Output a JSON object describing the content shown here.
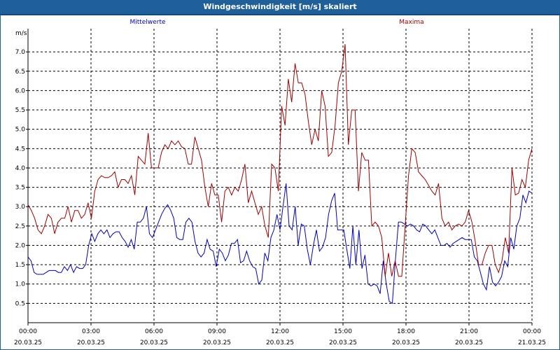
{
  "window": {
    "title": "Windgeschwindigkeit [m/s] skaliert"
  },
  "colors": {
    "title_bg": "#1f5f9a",
    "mean": "#0000c0",
    "max": "#a00000",
    "grid": "#000000"
  },
  "chart_data": {
    "type": "line",
    "title": "Windgeschwindigkeit [m/s] skaliert",
    "ylabel": "m/s",
    "xlabel": "",
    "ylim": [
      0,
      7.6
    ],
    "xlim": [
      0,
      24
    ],
    "grid": true,
    "y_ticks": [
      "0.5",
      "1.0",
      "1.5",
      "2.0",
      "2.5",
      "3.0",
      "3.5",
      "4.0",
      "4.5",
      "5.0",
      "5.5",
      "6.0",
      "6.5",
      "7.0"
    ],
    "x_ticks": [
      {
        "time": "00:00",
        "date": "20.03.25"
      },
      {
        "time": "03:00",
        "date": "20.03.25"
      },
      {
        "time": "06:00",
        "date": "20.03.25"
      },
      {
        "time": "09:00",
        "date": "20.03.25"
      },
      {
        "time": "12:00",
        "date": "20.03.25"
      },
      {
        "time": "15:00",
        "date": "20.03.25"
      },
      {
        "time": "18:00",
        "date": "20.03.25"
      },
      {
        "time": "21:00",
        "date": "20.03.25"
      },
      {
        "time": "00:00",
        "date": "21.03.25"
      }
    ],
    "series": [
      {
        "name": "Mittelwerte",
        "color": "#0000c0",
        "values": [
          1.7,
          1.6,
          1.3,
          1.25,
          1.25,
          1.25,
          1.3,
          1.35,
          1.35,
          1.35,
          1.3,
          1.3,
          1.45,
          1.35,
          1.5,
          1.3,
          1.45,
          1.4,
          1.4,
          1.5,
          2.0,
          2.3,
          2.1,
          2.3,
          2.4,
          2.3,
          2.4,
          2.2,
          2.3,
          2.35,
          2.35,
          2.2,
          2.1,
          1.95,
          2.15,
          1.9,
          2.6,
          2.6,
          2.7,
          3.0,
          2.3,
          2.2,
          2.4,
          2.6,
          2.8,
          2.95,
          3.05,
          2.9,
          2.7,
          2.2,
          2.15,
          2.15,
          2.6,
          2.7,
          2.6,
          2.1,
          1.8,
          1.7,
          1.8,
          2.15,
          1.9,
          1.85,
          1.45,
          1.9,
          1.8,
          1.6,
          1.75,
          2.05,
          2.05,
          2.15,
          1.55,
          1.6,
          1.85,
          1.6,
          1.45,
          1.4,
          1.0,
          1.1,
          1.8,
          1.6,
          2.2,
          2.4,
          2.8,
          2.4,
          3.0,
          3.6,
          2.5,
          2.4,
          3.0,
          2.0,
          2.55,
          2.5,
          1.9,
          1.5,
          2.0,
          2.4,
          1.85,
          1.95,
          2.2,
          2.8,
          3.15,
          3.35,
          2.4,
          2.4,
          2.4,
          1.9,
          1.4,
          2.5,
          1.5,
          2.4,
          1.4,
          1.75,
          1.0,
          0.95,
          1.0,
          0.95,
          0.75,
          1.6,
          1.0,
          0.55,
          0.5,
          1.6,
          2.6,
          2.6,
          2.55,
          2.5,
          2.55,
          2.5,
          2.4,
          2.35,
          2.55,
          2.5,
          2.4,
          2.3,
          2.4,
          2.2,
          2.0,
          2.0,
          2.05,
          1.95,
          2.05,
          2.1,
          2.15,
          2.2,
          2.15,
          2.15,
          2.15,
          1.7,
          1.6,
          1.3,
          1.0,
          0.85,
          1.45,
          1.05,
          0.95,
          1.05,
          1.2,
          1.6,
          1.45,
          2.2,
          1.9,
          2.5,
          2.7,
          3.3,
          3.1,
          3.4,
          3.35
        ]
      },
      {
        "name": "Maxima",
        "color": "#a00000",
        "values": [
          3.05,
          2.9,
          2.7,
          2.4,
          2.3,
          2.5,
          2.8,
          2.7,
          2.3,
          2.6,
          2.7,
          2.7,
          3.0,
          2.6,
          2.9,
          2.9,
          2.7,
          2.8,
          3.1,
          2.7,
          3.4,
          3.7,
          3.8,
          3.75,
          3.75,
          3.8,
          3.9,
          3.5,
          3.7,
          3.7,
          3.6,
          3.8,
          3.3,
          4.3,
          4.2,
          4.1,
          4.9,
          4.0,
          4.0,
          4.0,
          4.4,
          4.6,
          4.5,
          4.7,
          4.6,
          4.7,
          4.55,
          4.5,
          4.1,
          4.1,
          4.8,
          4.5,
          4.2,
          3.5,
          3.0,
          3.6,
          3.3,
          3.3,
          2.6,
          3.4,
          3.5,
          3.3,
          3.5,
          3.4,
          3.7,
          4.1,
          3.1,
          3.4,
          3.1,
          2.8,
          3.0,
          2.5,
          2.2,
          4.1,
          4.0,
          3.4,
          5.6,
          5.1,
          6.3,
          5.7,
          6.7,
          6.2,
          6.2,
          5.9,
          5.2,
          4.6,
          5.0,
          4.7,
          6.0,
          5.6,
          4.3,
          4.4,
          5.1,
          6.2,
          6.5,
          7.2,
          4.6,
          5.5,
          5.5,
          3.4,
          4.4,
          4.2,
          4.2,
          2.5,
          2.6,
          2.5,
          2.2,
          1.2,
          1.8,
          1.2,
          1.6,
          1.2,
          1.2,
          2.5,
          3.8,
          4.5,
          4.4,
          3.9,
          3.8,
          3.7,
          3.55,
          3.4,
          3.3,
          3.6,
          2.7,
          2.5,
          2.6,
          2.4,
          2.5,
          2.55,
          2.5,
          2.6,
          2.9,
          2.6,
          2.1,
          1.5,
          1.5,
          1.8,
          2.0,
          2.0,
          1.5,
          1.3,
          1.6,
          2.2,
          1.8,
          4.0,
          3.3,
          3.35,
          3.7,
          3.5,
          4.2,
          4.5
        ]
      }
    ]
  }
}
